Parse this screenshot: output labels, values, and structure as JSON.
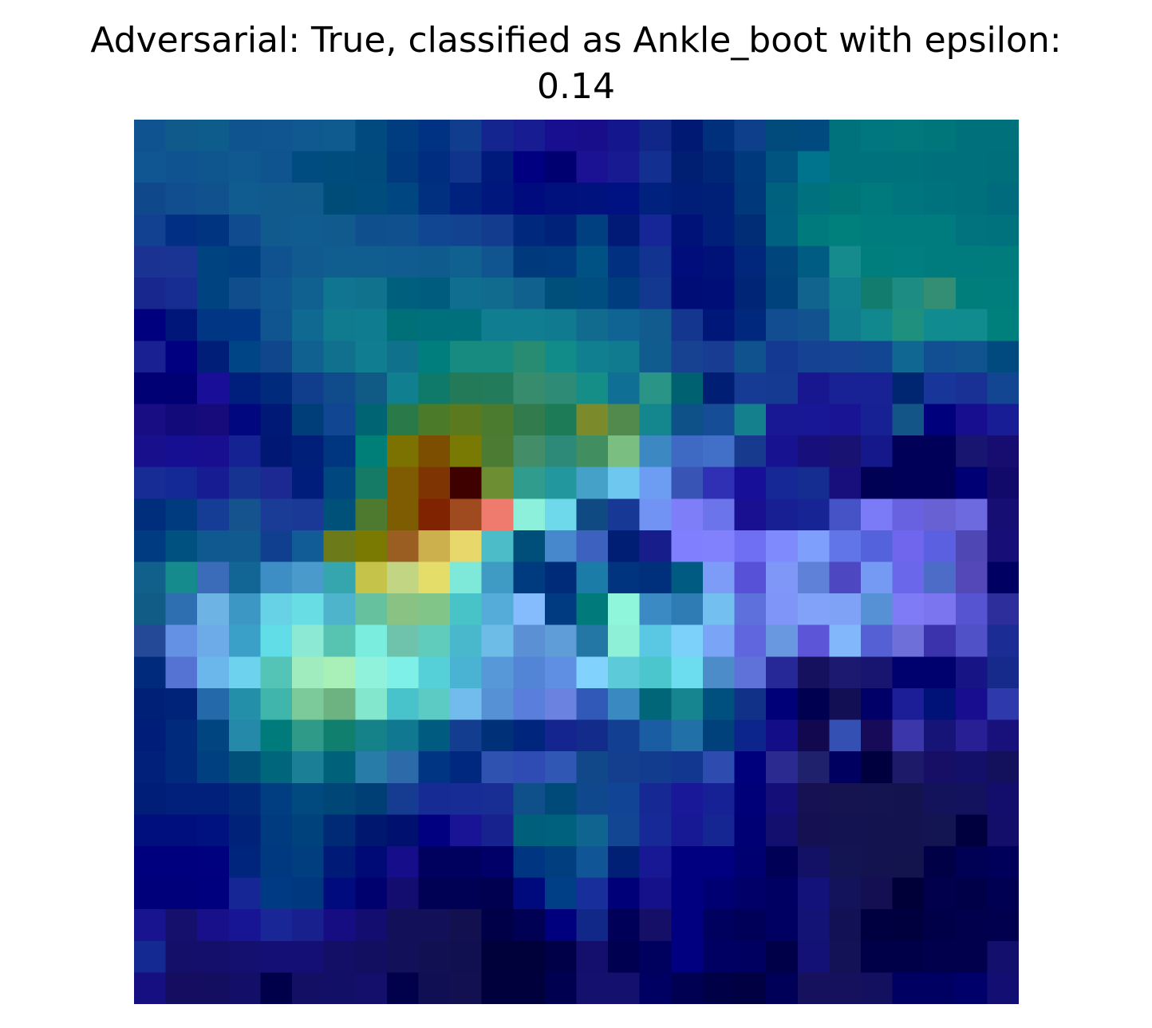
{
  "chart_data": {
    "type": "heatmap",
    "title_lines": [
      "Adversarial: True, classified as Ankle_boot with epsilon:",
      "0.14"
    ],
    "axes_visible": false,
    "grid": false,
    "shape": [
      28,
      28
    ],
    "rows": [
      "#0f5490 #105a8b #0e5c8c #0f548e #105590 #0f5890 #0f5a8e #004a80 #003d80 #003284 #103d8e #15258f #181c93 #170f8f #180e8c #14168e #102788 #001a73 #00307c #0e3f8b #004b7b #004a80 #00727b #00767e #00787c #00767b #00707b #00707b",
      "#0f5693 #0f5490 #0f568f #0f5890 #0f548e #004c80 #004c7d #004b7c #00397e #002d7f #10348c #001a7c #000080 #000071 #1b1293 #181a91 #133090 #001e72 #002676 #00397c #00547f #00748d #00727e #00727e #00727c #00707c #00707c #006f7c",
      "#10488c #104e90 #10518e #105b90 #105a8e #105a8c #004c79 #004c7d #004681 #00307f #00227f #00187e #000c7e #00107d #00127e #001181 #00227e #001d78 #001f76 #00387c #00617e #00727f #007679 #007a7c #00757d #00727e #00707c #006b7c",
      "#114190 #002f84 #003481 #104b90 #105a8e #105b8f #105a8d #104f8d #10508e #114792 #124391 #133b8e #00287c #002278 #003f80 #001a76 #172696 #001178 #001f78 #002d75 #006280 #007a7c #00807c #007c7e #007c7e #007c7e #00737e #00727e",
      "#1a3392 #193493 #004381 #003f81 #105290 #105a90 #105d8f #105e8f #105b8f #105b8e #10618f #105590 #003a7c #003a7f #005285 #00307f #133390 #000d7a #001178 #00277c #00457c #005c83 #158b8e #007d7d #007e80 #007c7e #007c7f #007c7d",
      "#18278d #182d91 #004381 #104d8c #105690 #106190 #107590 #10728c #005f7c #005c7e #106e90 #106b8e #10618e #004e7a #004e80 #003d7e #133890 #000d76 #000e77 #002577 #00427b #10648d #10808e #127d6f #1d8c83 #348e74 #007e7c #007e7e",
      "#00007e #001678 #003683 #003686 #105590 #106990 #107a8e #107c8f #007078 #00707c #00717c #107e90 #107e90 #107a90 #106b8f #106493 #115b8e #15368f #00177a #00297d #124c91 #11528f #107d8f #11888e #1f907e #108b8f #108b8e #00807c",
      "#182092 #000081 #001d78 #004686 #10468c #106190 #10708e #107d90 #10718c #007e7e #178b7f #178b7f #288c73 #118c89 #107f90 #107b8e #105c8e #174291 #183c91 #10528e #133993 #154293 #164393 #124692 #106892 #114e92 #10538f #004a7f",
      "#000074 #000074 #180e98 #001f7c #002a7b #103d8c #104c8c #105a86 #108090 #0f7a6a #237a59 #227b5b #388c6e #2d8b76 #158e88 #106f95 #2a9486 #006271 #001e74 #163b94 #143b91 #18178f #182295 #182294 #002672 #183599 #193095 #124693",
      "#180d83 #12097a #170a7a #00077f #001876 #003e7a #104692 #006473 #2a7a49 #4b7b28 #5b7a20 #4a7b2f #327b4d #1e7b58 #7b8a2b #518a4c #14868e #0d5188 #154d96 #14808d #181895 #181897 #181493 #172193 #145588 #00007c #170e8f #181c95",
      "#180f8c #170f91 #180f90 #152291 #001873 #001f79 #003580 #007e78 #7b7202 #7b4e02 #787a04 #4c7b33 #438e69 #2d8a78 #418e61 #7bbe82 #3c88c3 #3f6ac4 #4270c8 #183a8e #171390 #170f7b #181373 #15188a #000058 #000058 #181570 #170d70",
      "#182c95 #142896 #181c92 #163391 #1c2993 #001d7c #004780 #157a66 #7f5b02 #7f3403 #3f0000 #6d8e33 #2f9c8e #22989e #45a1c8 #6ec7ef #6c9df2 #3854b4 #3030b4 #180f98 #162895 #152d90 #180f7c #000055 #000058 #000059 #000075 #120a6a",
      "#002d7c #003b80 #163d95 #15538f #1b3c96 #1a3896 #005179 #4e7a30 #7e5d02 #7f2300 #9f4a1f #ef7a6e #8cf0da #6fd9ec #0f4a82 #173894 #7194f4 #7e7ff8 #6c74ec #180f91 #181f93 #172594 #4553c6 #7b7bf8 #6962e0 #6761d4 #6d69df #170e74",
      "#003a80 #005080 #105890 #105a8f #103f8f #115b96 #6d7a1a #7a7901 #9a5e23 #cbb04d #e8d76a #4cbcc8 #004e7a #4787cc #3d61be #001f74 #171e8c #8080ff #8181fe #6e6ff2 #7f8afd #7f9ffc #6174e8 #5462dc #7066ed #5a60e0 #4f47b4 #170f77",
      "#10608b #158b8e #3a6cba #116696 #3c8ec4 #4a9bcc #35a5ae #c5c34a #c2d582 #e5dd6a #7ee8d9 #3f9ac4 #003b80 #002b78 #1b7ca8 #00347e #00307c #005b82 #7c9cf8 #5751d7 #7f98f8 #5f82d8 #4e47c2 #749af4 #6a67ea #4c6cc8 #5448b8 #000063",
      "#105c86 #2d6fb0 #6db4e5 #3c97c5 #67d1e5 #68dde3 #4eb4cc #66c19f #89c283 #81c688 #48c3c8 #56acd8 #85bcfe #003a80 #007a7b #8ff6db #3b8ac3 #2f7cb4 #72bff0 #5e70dc #7f96f8 #81a2f8 #7fa2f6 #5591d4 #7f7af5 #7b76f0 #5654d0 #2d2d9b",
      "#234997 #6591e5 #6cabe8 #3aa0c8 #60dde6 #8be9d4 #57c3b1 #7aedde #6fc3ac #60ccbb #4ab8cc #6dbbe7 #5b91d4 #5f9dd8 #2377a5 #8ef0d6 #5bc8e3 #7cd1fb #7aa5f6 #6067de #6a98e0 #5c55d8 #82b8fb #5560d5 #6e6fd9 #3a33ab #5050c7 #1c2c95",
      "#002a7c #5573d3 #6bb6ea #6cd2ee #53c4b6 #a0ecbe #a8f0b8 #90f2da #7ff0e8 #55cfd8 #4ab2d2 #5698d8 #5385d7 #5f8fe2 #82d2fe #5ccad8 #4ac6cc #6cdcef #4c8cc8 #5e72d9 #262898 #15115e #1b1a70 #171570 #00006f #00006f #171485 #162a8b",
      "#002078 #00237a #2469a9 #248fa8 #3fb5ac #7cca9a #6db381 #82e7cc #48c3cb #5ccbc3 #72bbed #5690d5 #5a7edc #6b82e0 #3059b8 #3a89c0 #006678 #17858f #00507f #113188 #000078 #000050 #130f55 #000068 #1c1e97 #001278 #180d8e #2e3aac",
      "#001d79 #002a7c #004480 #258aaa #007b7c #309a88 #107f6e #15828a #107890 #005b80 #133d8f #003077 #00257d #15258f #132c8c #133f92 #1a5da2 #2270a8 #00407b #0c258c #130e87 #12084f #3350b2 #170b59 #3c36ab #171478 #281f95 #18107b",
      "#002079 #002a7c #003f80 #005079 #00667b #1b8096 #00627a #277ca8 #2c6aaa #003584 #00287f #2f52b0 #2e4cb4 #3057b4 #11488a #133f8e #123d8e #113790 #2e4bb0 #00007c #2a2a90 #20216d #000060 #00003f #1d1a69 #160f65 #13106a #13105c",
      "#001e78 #00207c #00207c #00297a #003e81 #004a80 #004677 #003f75 #163c92 #172b94 #172c94 #182e94 #10508a #004a79 #10488e #114494 #152893 #181899 #152195 #000078 #130e78 #151152 #151350 #131450 #13134f #13135b #13125f #130e6c",
      "#000f7e #000f7e #001180 #002278 #003b80 #00427c #002a75 #001770 #00106f #000080 #181495 #18228e #00607c #00617f #106490 #124592 #172996 #171893 #152591 #000075 #130f6f #141052 #141352 #13134f #13134f #131452 #00003f #120e6a",
      "#00007e #00007e #00017e #00257c #003980 #003e80 #001a78 #000a76 #160d8a #00005e #00005e #000068 #003582 #003e80 #105595 #002076 #181894 #000080 #000080 #000070 #000057 #121165 #131452 #13134f #13134e #000046 #000054 #00005a",
      "#00007a #00007a #00007e #162694 #003a84 #003880 #000c7d #00006f #140d70 #000055 #000055 #000050 #000a7c #003f86 #182f9b #000079 #15118a #000080 #000073 #000068 #000063 #13127a #13135c #130f52 #000038 #00004d #000048 #000052",
      "#18138e #15106c #17108a #181594 #182696 #18208e #170d83 #120d6e #121059 #121059 #12104e #000048 #000055 #00007e #112888 #000058 #150f67 #000080 #00005f #000058 #000063 #131376 #121156 #000040 #00003e #000048 #00004c #00004f",
      "#142a92 #140f68 #130f6a #131070 #130f75 #130f75 #130f67 #120e60 #121058 #101053 #101050 #00003a #00003a #000048 #140f6c #000050 #00005e #000080 #000063 #000060 #000049 #131176 #131257 #000048 #000048 #00004c #00004c #130f6c",
      "#150f81 #140d60 #130e5f #130f68 #00004a #130f65 #120f67 #140f6a #00004b #100f54 #121051 #00003d #00003d #000050 #14106e #14106e #000062 #000052 #000046 #000043 #000058 #15115c #15115c #13105f #000062 #000063 #00006a #130f72"
    ]
  }
}
